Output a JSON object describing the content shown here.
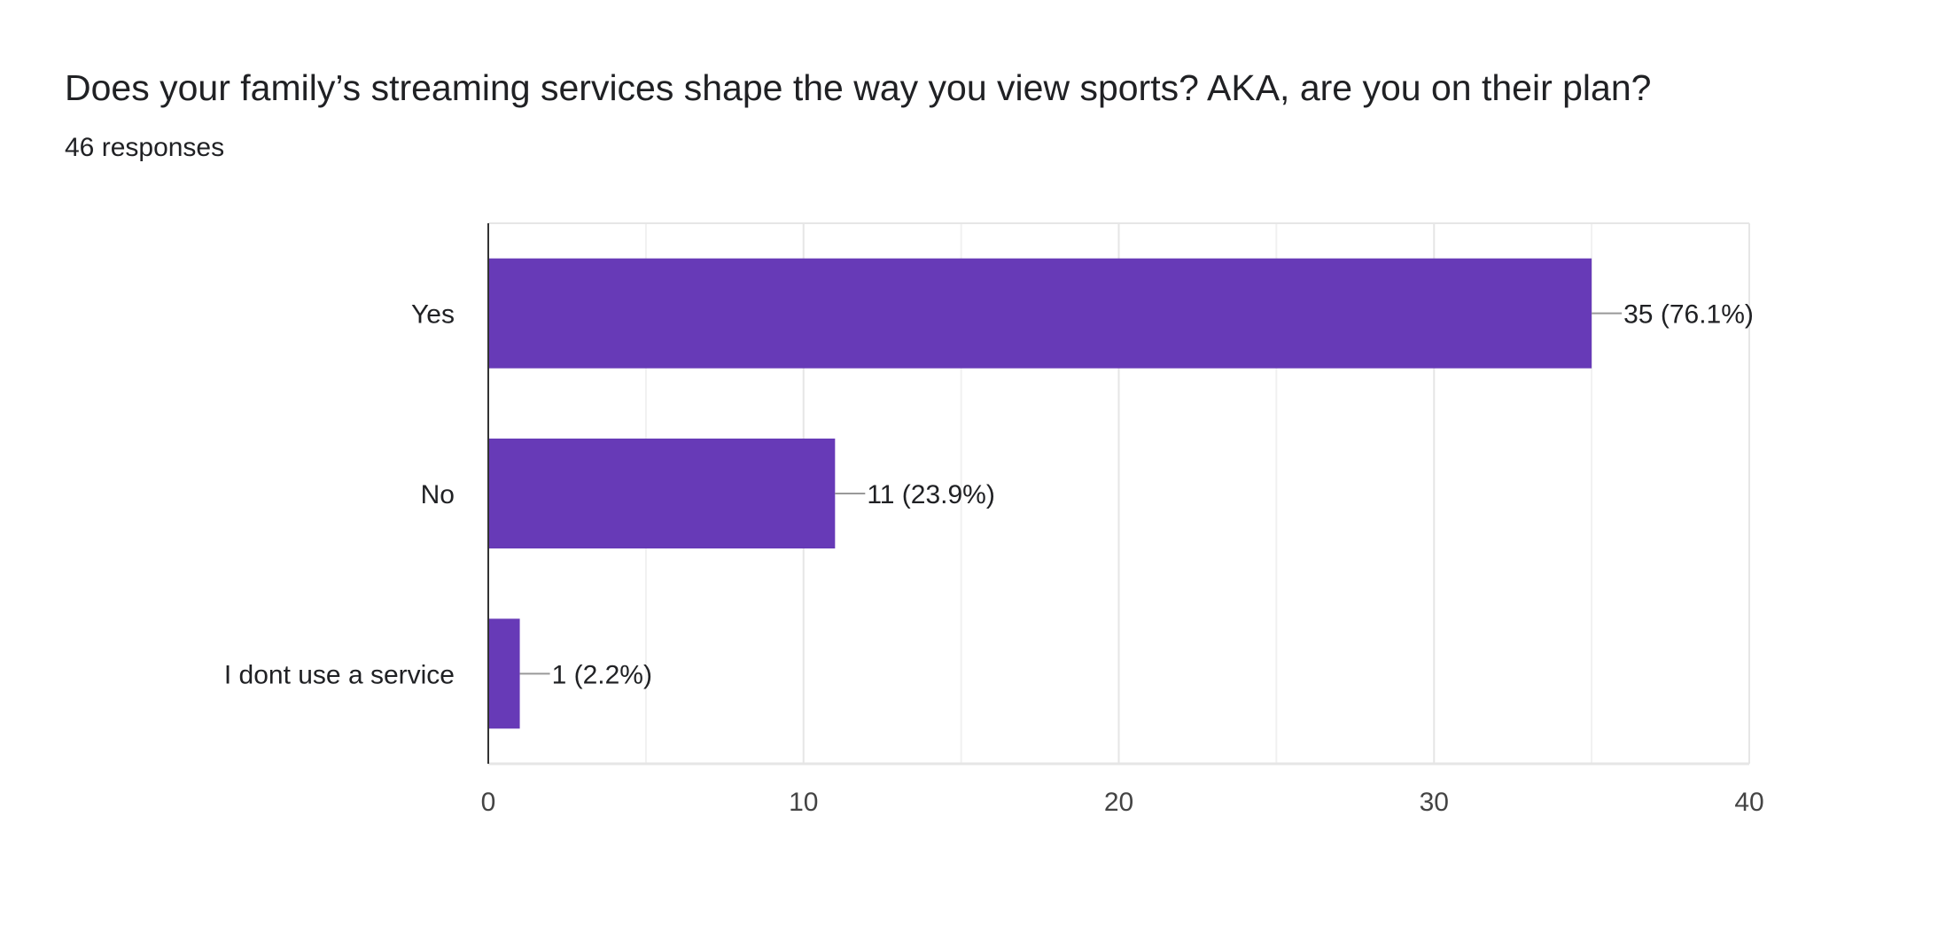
{
  "chart_data": {
    "type": "bar",
    "orientation": "horizontal",
    "title": "Does your family’s streaming services shape the way you view sports? AKA, are you on their plan?",
    "subtitle": "46 responses",
    "categories": [
      "Yes",
      "No",
      "I dont use a service"
    ],
    "values": [
      35,
      11,
      1
    ],
    "data_labels": [
      "35 (76.1%)",
      "11 (23.9%)",
      "1 (2.2%)"
    ],
    "xlim": [
      0,
      40
    ],
    "xticks": [
      0,
      10,
      20,
      30,
      40
    ],
    "grid": true,
    "bar_color": "#673ab7",
    "xlabel": "",
    "ylabel": ""
  }
}
